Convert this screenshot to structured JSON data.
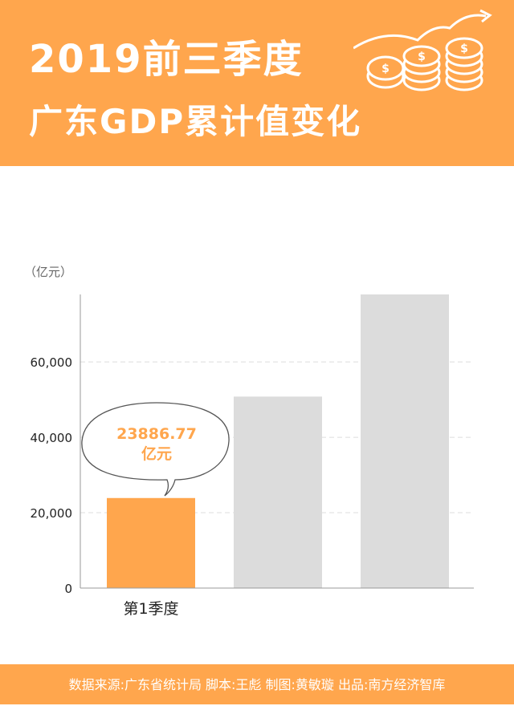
{
  "header": {
    "title_line1": "2019前三季度",
    "title_line2": "广东GDP累计值变化"
  },
  "footer": {
    "credits": "数据来源:广东省统计局  脚本:王彪  制图:黄敏璇  出品:南方经济智库"
  },
  "colors": {
    "header": "#FFA64D",
    "highlight_bar": "#FFA64D",
    "pending_bar": "#DCDCDC",
    "label": "#FFA64D"
  },
  "chart_data": {
    "type": "bar",
    "unit_label": "（亿元）",
    "categories": [
      "第1季度",
      "",
      ""
    ],
    "values": [
      23886.77,
      50800,
      77900
    ],
    "highlighted_index": 0,
    "callout": {
      "value": "23886.77",
      "unit": "亿元"
    },
    "yticks": [
      0,
      20000,
      40000,
      60000
    ],
    "ytick_labels": [
      "0",
      "20,000",
      "40,000",
      "60,000"
    ],
    "ylim": [
      0,
      77900
    ],
    "grid": true
  }
}
